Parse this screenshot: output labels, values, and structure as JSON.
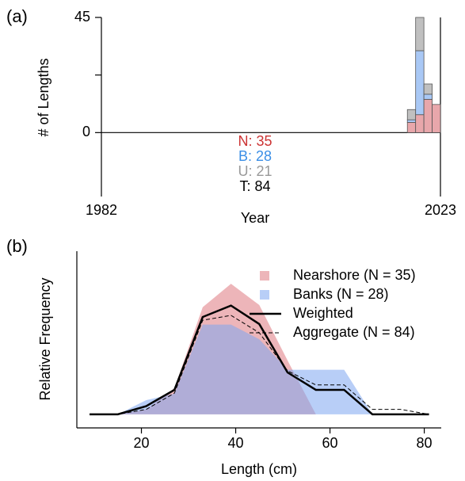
{
  "chart_data": [
    {
      "type": "stacked-bar",
      "panel_label": "(a)",
      "x_label": "Year",
      "y_label": "# of Lengths",
      "x": [
        2019,
        2020,
        2021,
        2022
      ],
      "series": [
        {
          "color": "#e8a7ab",
          "values": [
            4,
            7,
            13,
            11
          ]
        },
        {
          "color": "#a9c8f5",
          "values": [
            1,
            25,
            2,
            0
          ]
        },
        {
          "color": "#c0c0c0",
          "values": [
            4,
            13,
            4,
            0
          ]
        }
      ],
      "count_labels": [
        {
          "text": "N: 35",
          "color": "#cc3333"
        },
        {
          "text": "B: 28",
          "color": "#3a8ee6"
        },
        {
          "text": "U: 21",
          "color": "#999999"
        },
        {
          "text": "T: 84",
          "color": "#000000"
        }
      ],
      "xlim": [
        1982,
        2023
      ],
      "xticks": [
        1982,
        2023
      ],
      "ylim": [
        -22.5,
        45
      ],
      "yticks": [
        0,
        45
      ],
      "minor_yticks": [
        22.5
      ]
    },
    {
      "type": "area-line",
      "panel_label": "(b)",
      "x_label": "Length (cm)",
      "y_label": "Relative Frequency",
      "x": [
        9,
        15,
        21,
        27,
        33,
        39,
        45,
        51,
        57,
        63,
        69,
        75,
        81
      ],
      "series": [
        {
          "name": "Nearshore (N = 35)",
          "style": "area",
          "color": "rgba(222,120,128,0.55)",
          "values": [
            0,
            0,
            0.009,
            0.048,
            0.197,
            0.24,
            0.201,
            0.099,
            0,
            0,
            0,
            0,
            0
          ]
        },
        {
          "name": "Banks (N = 28)",
          "style": "area",
          "color": "rgba(125,165,240,0.55)",
          "values": [
            0,
            0,
            0.026,
            0.038,
            0.165,
            0.165,
            0.138,
            0.082,
            0.082,
            0.082,
            0,
            0,
            0
          ]
        },
        {
          "name": "Weighted",
          "style": "line",
          "color": "#000000",
          "values": [
            0,
            0,
            0.015,
            0.045,
            0.179,
            0.2,
            0.166,
            0.077,
            0.045,
            0.045,
            0,
            0,
            0
          ]
        },
        {
          "name": "Aggregate (N = 84)",
          "style": "dashed",
          "color": "#000000",
          "values": [
            0,
            0,
            0.009,
            0.039,
            0.173,
            0.182,
            0.15,
            0.08,
            0.054,
            0.054,
            0.009,
            0.009,
            0
          ]
        }
      ],
      "xlim": [
        6.3,
        83.6
      ],
      "xticks": [
        20,
        40,
        60,
        80
      ],
      "ylim": [
        -0.025,
        0.3
      ]
    }
  ]
}
